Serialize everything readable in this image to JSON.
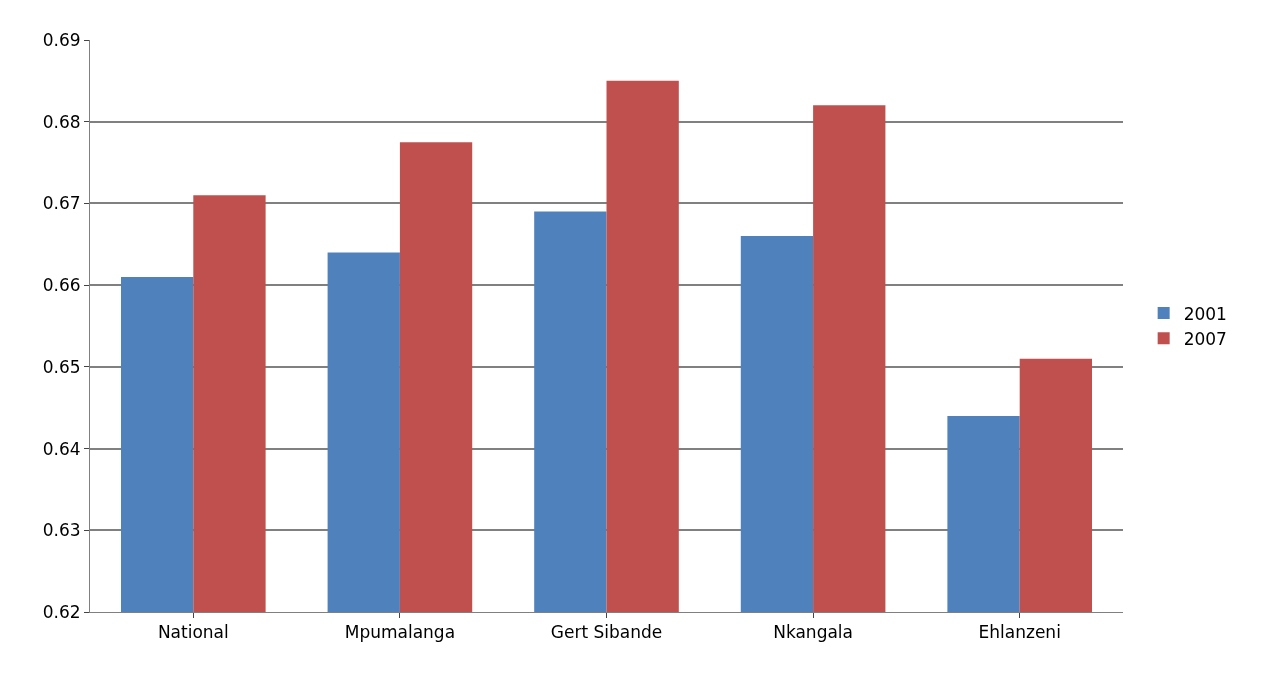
{
  "chart_data": {
    "type": "bar",
    "categories": [
      "National",
      "Mpumalanga",
      "Gert Sibande",
      "Nkangala",
      "Ehlanzeni"
    ],
    "series": [
      {
        "name": "2001",
        "color": "#4f81bd",
        "values": [
          0.661,
          0.664,
          0.669,
          0.666,
          0.644
        ]
      },
      {
        "name": "2007",
        "color": "#c0504d",
        "values": [
          0.671,
          0.6775,
          0.685,
          0.682,
          0.651
        ]
      }
    ],
    "ylim": [
      0.62,
      0.69
    ],
    "yticks": [
      0.62,
      0.63,
      0.64,
      0.65,
      0.66,
      0.67,
      0.68,
      0.69
    ],
    "grid": "y",
    "legend": "right"
  }
}
